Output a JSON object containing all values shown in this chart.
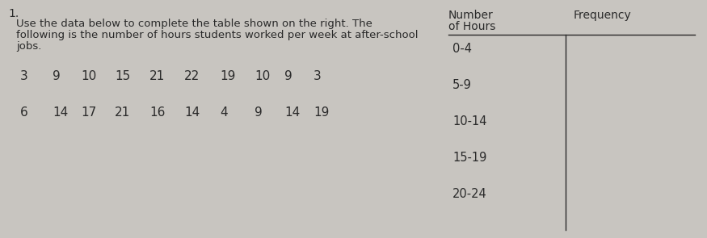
{
  "question_number": "1.",
  "instruction_line1": "Use the data below to complete the table shown on the right. The",
  "instruction_line2": "following is the number of hours students worked per week at after-school",
  "instruction_line3": "jobs.",
  "data_row1_nums": [
    "3",
    "9",
    "10",
    "15",
    "21",
    "22",
    "19",
    "10",
    "9",
    "3"
  ],
  "data_row2_nums": [
    "6",
    "14",
    "17",
    "21",
    "16",
    "14",
    "4",
    "9",
    "14",
    "19"
  ],
  "col1_header_line1": "Number",
  "col1_header_line2": "of Hours",
  "col2_header": "Frequency",
  "table_rows": [
    "0-4",
    "5-9",
    "10-14",
    "15-19",
    "20-24"
  ],
  "bg_color": "#c8c5c0",
  "text_color": "#2a2a2a",
  "font_size_instruction": 9.5,
  "font_size_data": 11,
  "font_size_table": 10.5,
  "font_size_header": 10,
  "font_size_qnum": 10
}
